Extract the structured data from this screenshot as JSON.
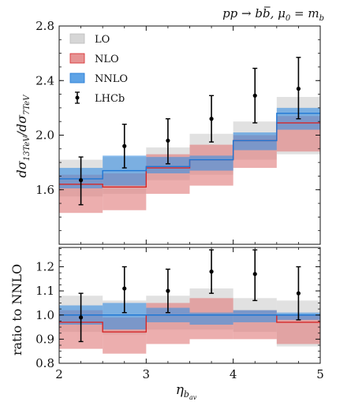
{
  "process_label": "pp → bb̄, μ0 = mb",
  "process_parts": {
    "lhs": "pp → b",
    "bbar": "b",
    "tail": ", μ",
    "mu_sub": "0",
    "eq": " = m",
    "m_sub": "b"
  },
  "colors": {
    "LO_band": "#c8c8c8",
    "NLO_band": "#e07c7c",
    "NLO_line": "#d62728",
    "NNLO_band": "#3b8fe0",
    "NNLO_line": "#1f77d4",
    "LHCb": "#000000"
  },
  "chart_data": [
    {
      "type": "step-band",
      "panel": "top",
      "ylabel": "dσ13TeV / dσ7TeV",
      "ylabel_parts": {
        "num": "dσ",
        "num_sub": "13TeV",
        "den": "dσ",
        "den_sub": "7TeV"
      },
      "xlim": [
        2,
        5
      ],
      "ylim": [
        1.2,
        2.8
      ],
      "yticks": [
        1.6,
        2.0,
        2.4,
        2.8
      ],
      "ytick_labels": [
        "1.6",
        "2.0",
        "2.4",
        "2.8"
      ],
      "xbins": [
        2.0,
        2.5,
        3.0,
        3.5,
        4.0,
        4.5,
        5.0
      ],
      "legend": [
        "LO",
        "NLO",
        "NNLO",
        "LHCb"
      ],
      "legend_position": "top-left",
      "series": [
        {
          "name": "LO",
          "central": [
            1.66,
            1.67,
            1.78,
            1.84,
            1.98,
            2.13
          ],
          "low": [
            1.55,
            1.57,
            1.67,
            1.71,
            1.82,
            1.86
          ],
          "high": [
            1.82,
            1.84,
            1.91,
            2.01,
            2.1,
            2.28
          ]
        },
        {
          "name": "NLO",
          "central": [
            1.64,
            1.62,
            1.76,
            1.82,
            1.96,
            2.09
          ],
          "low": [
            1.43,
            1.45,
            1.57,
            1.63,
            1.76,
            1.88
          ],
          "high": [
            1.71,
            1.72,
            1.86,
            1.93,
            2.0,
            2.14
          ]
        },
        {
          "name": "NNLO",
          "central": [
            1.68,
            1.74,
            1.77,
            1.82,
            1.96,
            2.16
          ],
          "low": [
            1.61,
            1.63,
            1.72,
            1.74,
            1.89,
            2.04
          ],
          "high": [
            1.76,
            1.85,
            1.84,
            1.85,
            2.02,
            2.2
          ]
        }
      ],
      "data_points": {
        "name": "LHCb",
        "x": [
          2.25,
          2.75,
          3.25,
          3.75,
          4.25,
          4.75
        ],
        "y": [
          1.67,
          1.92,
          1.96,
          2.12,
          2.29,
          2.34
        ],
        "yerr_low": [
          1.49,
          1.76,
          1.79,
          1.95,
          2.09,
          2.12
        ],
        "yerr_high": [
          1.84,
          2.08,
          2.12,
          2.29,
          2.49,
          2.57
        ]
      }
    },
    {
      "type": "step-band",
      "panel": "bottom",
      "xlabel": "ηbav",
      "xlabel_parts": {
        "base": "η",
        "sub": "b",
        "subsub": "av"
      },
      "ylabel": "ratio to NNLO",
      "xlim": [
        2,
        5
      ],
      "ylim": [
        0.8,
        1.28
      ],
      "xticks": [
        2,
        3,
        4,
        5
      ],
      "xtick_labels": [
        "2",
        "3",
        "4",
        "5"
      ],
      "yticks": [
        0.8,
        0.9,
        1.0,
        1.1,
        1.2
      ],
      "ytick_labels": [
        "0.8",
        "0.9",
        "1.0",
        "1.1",
        "1.2"
      ],
      "xbins": [
        2.0,
        2.5,
        3.0,
        3.5,
        4.0,
        4.5,
        5.0
      ],
      "series": [
        {
          "name": "LO",
          "central": [
            0.99,
            0.96,
            1.0,
            1.01,
            1.0,
            0.99
          ],
          "low": [
            0.93,
            0.92,
            0.94,
            0.94,
            0.93,
            0.87
          ],
          "high": [
            1.08,
            1.06,
            1.08,
            1.11,
            1.07,
            1.06
          ]
        },
        {
          "name": "NLO",
          "central": [
            0.97,
            0.93,
            1.0,
            1.0,
            1.0,
            0.97
          ],
          "low": [
            0.86,
            0.84,
            0.88,
            0.9,
            0.9,
            0.88
          ],
          "high": [
            1.02,
            0.99,
            1.05,
            1.07,
            1.02,
            1.0
          ]
        },
        {
          "name": "NNLO",
          "central": [
            1.0,
            1.0,
            1.0,
            1.0,
            1.0,
            1.0
          ],
          "low": [
            0.96,
            0.94,
            0.97,
            0.96,
            0.97,
            0.98
          ],
          "high": [
            1.04,
            1.05,
            1.03,
            1.01,
            1.02,
            1.01
          ]
        }
      ],
      "data_points": {
        "name": "LHCb",
        "x": [
          2.25,
          2.75,
          3.25,
          3.75,
          4.25,
          4.75
        ],
        "y": [
          0.99,
          1.11,
          1.1,
          1.18,
          1.17,
          1.09
        ],
        "yerr_low": [
          0.89,
          1.01,
          1.01,
          1.09,
          1.06,
          0.98
        ],
        "yerr_high": [
          1.09,
          1.2,
          1.19,
          1.27,
          1.27,
          1.2
        ]
      }
    }
  ]
}
